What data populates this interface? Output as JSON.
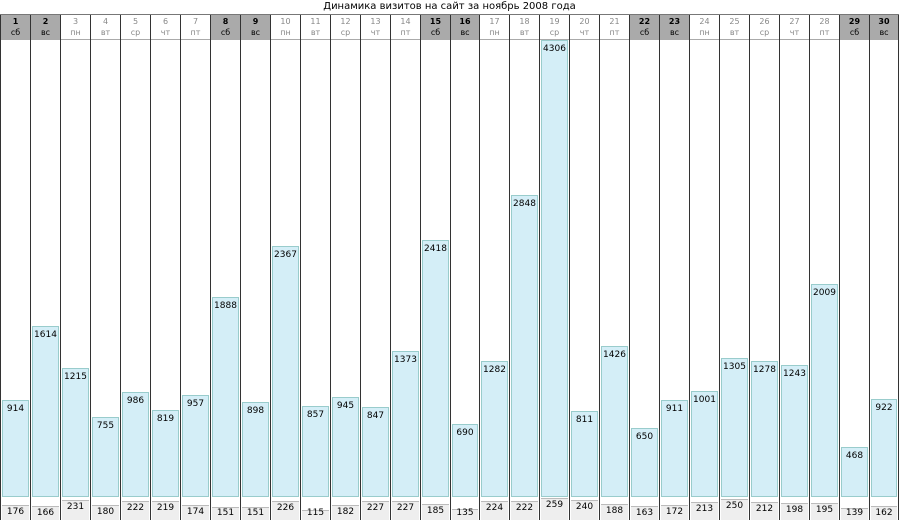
{
  "chart_data": {
    "type": "bar",
    "title": "Динамика визитов на сайт за ноябрь 2008 года",
    "categories": [
      "1",
      "2",
      "3",
      "4",
      "5",
      "6",
      "7",
      "8",
      "9",
      "10",
      "11",
      "12",
      "13",
      "14",
      "15",
      "16",
      "17",
      "18",
      "19",
      "20",
      "21",
      "22",
      "23",
      "24",
      "25",
      "26",
      "27",
      "28",
      "29",
      "30"
    ],
    "weekdays": [
      "сб",
      "вс",
      "пн",
      "вт",
      "ср",
      "чт",
      "пт",
      "сб",
      "вс",
      "пн",
      "вт",
      "ср",
      "чт",
      "пт",
      "сб",
      "вс",
      "пн",
      "вт",
      "ср",
      "чт",
      "пт",
      "сб",
      "вс",
      "пн",
      "вт",
      "ср",
      "чт",
      "пт",
      "сб",
      "вс"
    ],
    "weekend": [
      true,
      true,
      false,
      false,
      false,
      false,
      false,
      true,
      true,
      false,
      false,
      false,
      false,
      false,
      true,
      true,
      false,
      false,
      false,
      false,
      false,
      true,
      true,
      false,
      false,
      false,
      false,
      false,
      true,
      true
    ],
    "series": [
      {
        "values": [
          914,
          1614,
          1215,
          755,
          986,
          819,
          957,
          1888,
          898,
          2367,
          857,
          945,
          847,
          1373,
          2418,
          690,
          1282,
          2848,
          4306,
          811,
          1426,
          650,
          911,
          1001,
          1305,
          1278,
          1243,
          2009,
          468,
          922
        ]
      },
      {
        "values": [
          176,
          166,
          231,
          180,
          222,
          219,
          174,
          151,
          151,
          226,
          115,
          182,
          227,
          227,
          185,
          135,
          224,
          222,
          259,
          240,
          188,
          163,
          172,
          213,
          250,
          212,
          198,
          195,
          139,
          162
        ]
      }
    ],
    "ylim": [
      0,
      4306
    ],
    "colors": {
      "bar": "#d4eef7",
      "secondary": "#eeeeee",
      "weekend_header": "#aaaaaa"
    }
  }
}
